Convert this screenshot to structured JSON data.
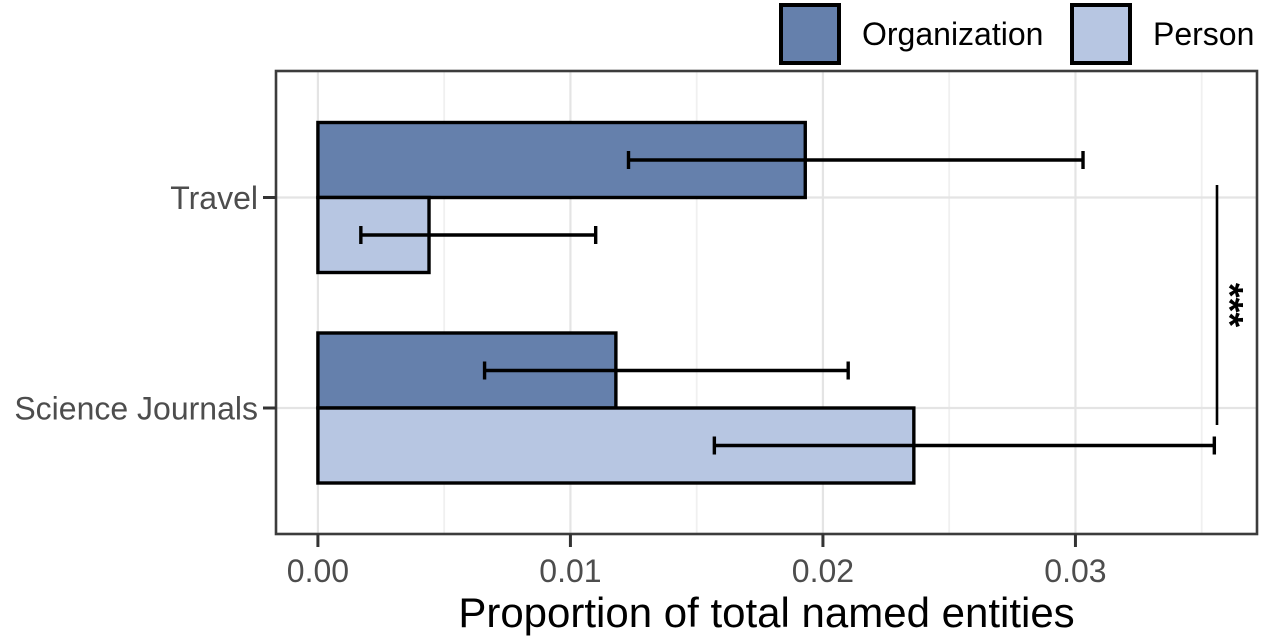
{
  "chart_data": {
    "type": "bar",
    "orientation": "horizontal",
    "title": "",
    "xlabel": "Proportion of total named entities",
    "ylabel": "",
    "categories": [
      "Travel",
      "Science Journals"
    ],
    "series": [
      {
        "name": "Organization",
        "color": "#6580ac",
        "values": [
          0.0193,
          0.0118
        ],
        "error_low": [
          0.0123,
          0.0066
        ],
        "error_high": [
          0.0303,
          0.021
        ]
      },
      {
        "name": "Person",
        "color": "#b7c6e2",
        "values": [
          0.0044,
          0.0236
        ],
        "error_low": [
          0.0017,
          0.0157
        ],
        "error_high": [
          0.011,
          0.0355
        ]
      }
    ],
    "x_ticks": [
      0,
      0.01,
      0.02,
      0.03
    ],
    "x_tick_labels": [
      "0.00",
      "0.01",
      "0.02",
      "0.03"
    ],
    "x_minor_ticks": [
      0.005,
      0.015,
      0.025,
      0.035
    ],
    "xlim": [
      -0.00166,
      0.03719
    ],
    "grid": true,
    "legend_position": "top-right",
    "error_bars": true,
    "significance": {
      "label": "***",
      "x": 0.0356,
      "between": [
        "Travel",
        "Science Journals"
      ]
    }
  },
  "legend": {
    "items": [
      {
        "label": "Organization",
        "color": "#6580ac"
      },
      {
        "label": "Person",
        "color": "#b7c6e2"
      }
    ]
  },
  "colors": {
    "background": "#ffffff",
    "bar_outline": "#000000",
    "panel_border": "#3c3c3c",
    "grid_major": "#e4e4e4",
    "grid_minor": "#f0f0f0",
    "tick": "#333333",
    "tick_label": "#4d4d4d",
    "axis_title": "#000000",
    "significance": "#000000"
  }
}
